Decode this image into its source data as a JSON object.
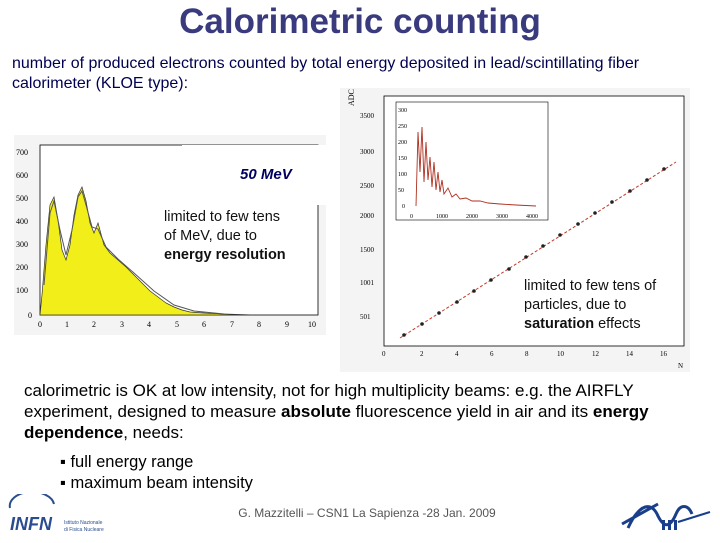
{
  "title": "Calorimetric counting",
  "intro": "number of produced electrons counted by total energy deposited in lead/scintillating fiber calorimeter (KLOE type):",
  "left_plot": {
    "energy_label": "50 MeV",
    "y_ticks": [
      "700",
      "600",
      "500",
      "400",
      "300",
      "200",
      "100",
      "0"
    ],
    "x_ticks": [
      "0",
      "1",
      "2",
      "3",
      "4",
      "5",
      "6",
      "7",
      "8",
      "9",
      "10"
    ],
    "note_line1": "limited to few tens",
    "note_line2": "of MeV, due to",
    "note_line3": "energy resolution"
  },
  "right_plot": {
    "y_axis_label": "ADC",
    "y_ticks": [
      "3500",
      "3000",
      "2500",
      "2000",
      "1500",
      "1001",
      "501"
    ],
    "x_ticks": [
      "0",
      "2",
      "4",
      "6",
      "8",
      "10",
      "12",
      "14",
      "16"
    ],
    "inset_y_ticks": [
      "300",
      "250",
      "200",
      "150",
      "100",
      "50",
      "0"
    ],
    "inset_x_ticks": [
      "0",
      "1000",
      "2000",
      "3000",
      "4000"
    ],
    "note_line1": "limited to few tens of",
    "note_line2": "particles, due to",
    "note_bold": "saturation",
    "note_tail": " effects",
    "corner_label": "N"
  },
  "body": {
    "part1": "calorimetric is OK at low intensity, not for high multiplicity beams: e.g. the AIRFLY experiment, designed to measure ",
    "bold1": "absolute",
    "part2": " fluorescence yield in air and its ",
    "bold2": "energy dependence",
    "part3": ", needs:"
  },
  "bullets": [
    "full energy range",
    "maximum beam intensity"
  ],
  "footer": "G. Mazzitelli – CSN1 La Sapienza -28 Jan. 2009",
  "logo_left": {
    "name": "INFN",
    "sub1": "Istituto Nazionale",
    "sub2": "di Fisica Nucleare"
  },
  "colors": {
    "title": "#3a3a7e",
    "histogram": "#f2ee1a",
    "fit_line": "#c0392b",
    "points": "#222222"
  }
}
